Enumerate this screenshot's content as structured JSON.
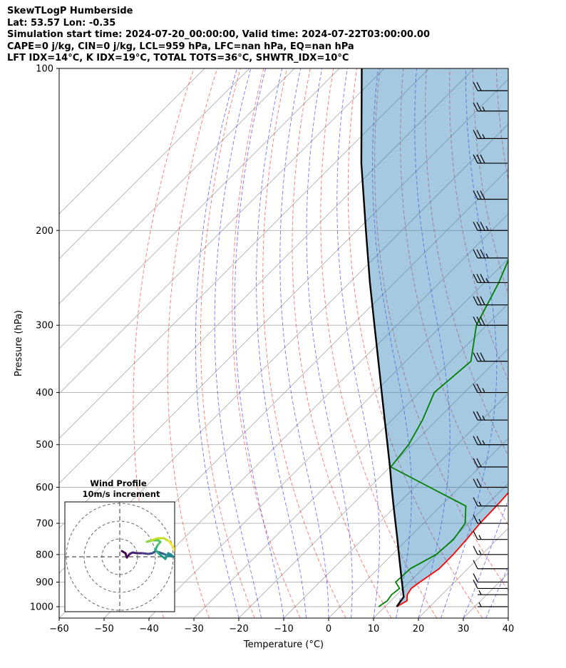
{
  "header": {
    "title": "SkewTLogP Humberside",
    "location": "Lat: 53.57   Lon: -0.35",
    "times": "Simulation start time: 2024-07-20_00:00:00, Valid time: 2024-07-22T03:00:00.00",
    "indices1": "CAPE=0 j/kg, CIN=0 j/kg, LCL=959 hPa, LFC=nan hPa, EQ=nan hPa",
    "indices2": "LFT IDX=14°C, K IDX=19°C, TOTAL TOTS=36°C, SHWTR_IDX=10°C"
  },
  "chart_data": {
    "type": "line",
    "subtype": "skew-t-log-p",
    "xlabel": "Temperature (°C)",
    "ylabel": "Pressure (hPa)",
    "xlim": [
      -60,
      40
    ],
    "ylim": [
      1050,
      100
    ],
    "y_scale": "log",
    "x_ticks": [
      -60,
      -50,
      -40,
      -30,
      -20,
      -10,
      0,
      10,
      20,
      30,
      40
    ],
    "x_tick_labels": [
      "−60",
      "−50",
      "−40",
      "−30",
      "−20",
      "−10",
      "0",
      "10",
      "20",
      "30",
      "40"
    ],
    "y_ticks": [
      1000,
      900,
      800,
      700,
      600,
      500,
      400,
      300,
      200,
      100
    ],
    "grid": true,
    "series": [
      {
        "color": "#ff0000",
        "points": [
          [
            1000,
            12.6
          ],
          [
            975,
            13.6
          ],
          [
            950,
            12.3
          ],
          [
            925,
            11.8
          ],
          [
            900,
            12.3
          ],
          [
            850,
            13.6
          ],
          [
            800,
            13.6
          ],
          [
            750,
            13.2
          ],
          [
            700,
            12.6
          ],
          [
            650,
            12.4
          ],
          [
            600,
            12.0
          ],
          [
            550,
            10.9
          ],
          [
            500,
            7.4
          ],
          [
            450,
            4.3
          ],
          [
            400,
            1.5
          ],
          [
            350,
            -1.1
          ],
          [
            300,
            -4.7
          ],
          [
            275,
            -5.8
          ],
          [
            250,
            -5.3
          ],
          [
            230,
            -3.9
          ],
          [
            200,
            -2.3
          ],
          [
            175,
            -2.7
          ],
          [
            150,
            -4.4
          ],
          [
            125,
            -5.8
          ],
          [
            110,
            -7.5
          ],
          [
            100,
            -8.8
          ]
        ]
      },
      {
        "color": "#008000",
        "points": [
          [
            1000,
            8.6
          ],
          [
            975,
            9.2
          ],
          [
            950,
            8.8
          ],
          [
            925,
            9.2
          ],
          [
            900,
            6.9
          ],
          [
            850,
            7.2
          ],
          [
            800,
            9.8
          ],
          [
            750,
            10.3
          ],
          [
            700,
            9.3
          ],
          [
            650,
            5.6
          ],
          [
            600,
            -6.6
          ],
          [
            550,
            -19.8
          ],
          [
            500,
            -20.8
          ],
          [
            450,
            -23.2
          ],
          [
            400,
            -26.7
          ],
          [
            350,
            -25.5
          ],
          [
            300,
            -32.3
          ],
          [
            250,
            -36.8
          ],
          [
            200,
            -43.5
          ],
          [
            175,
            -45.7
          ],
          [
            150,
            -52.0
          ],
          [
            135,
            -56.0
          ],
          [
            115,
            -58.0
          ],
          [
            100,
            -58.6
          ]
        ]
      },
      {
        "color": "#000000",
        "points": [
          [
            1000,
            12.6
          ],
          [
            959,
            12.0
          ],
          [
            925,
            9.9
          ],
          [
            900,
            8.3
          ],
          [
            850,
            5.0
          ],
          [
            800,
            1.5
          ],
          [
            750,
            -2.2
          ],
          [
            700,
            -6.2
          ],
          [
            650,
            -10.5
          ],
          [
            600,
            -15.1
          ],
          [
            550,
            -20.0
          ],
          [
            500,
            -25.5
          ],
          [
            450,
            -31.6
          ],
          [
            400,
            -38.4
          ],
          [
            350,
            -46.1
          ],
          [
            300,
            -55.0
          ],
          [
            250,
            -65.5
          ],
          [
            200,
            -78.0
          ],
          [
            150,
            -94.0
          ],
          [
            100,
            -115.0
          ]
        ]
      }
    ],
    "wind_barbs": [
      [
        1000,
        5
      ],
      [
        950,
        8
      ],
      [
        925,
        10
      ],
      [
        900,
        12
      ],
      [
        850,
        13
      ],
      [
        800,
        15
      ],
      [
        750,
        15
      ],
      [
        700,
        15
      ],
      [
        650,
        18
      ],
      [
        600,
        20
      ],
      [
        550,
        22
      ],
      [
        500,
        25
      ],
      [
        450,
        27
      ],
      [
        400,
        28
      ],
      [
        350,
        30
      ],
      [
        300,
        32
      ],
      [
        275,
        33
      ],
      [
        250,
        35
      ],
      [
        225,
        35
      ],
      [
        200,
        35
      ],
      [
        175,
        33
      ],
      [
        150,
        30
      ],
      [
        135,
        28
      ],
      [
        120,
        25
      ],
      [
        110,
        22
      ]
    ],
    "hodograph": {
      "title": "Wind Profile",
      "subtitle": "10m/s increment"
    }
  }
}
